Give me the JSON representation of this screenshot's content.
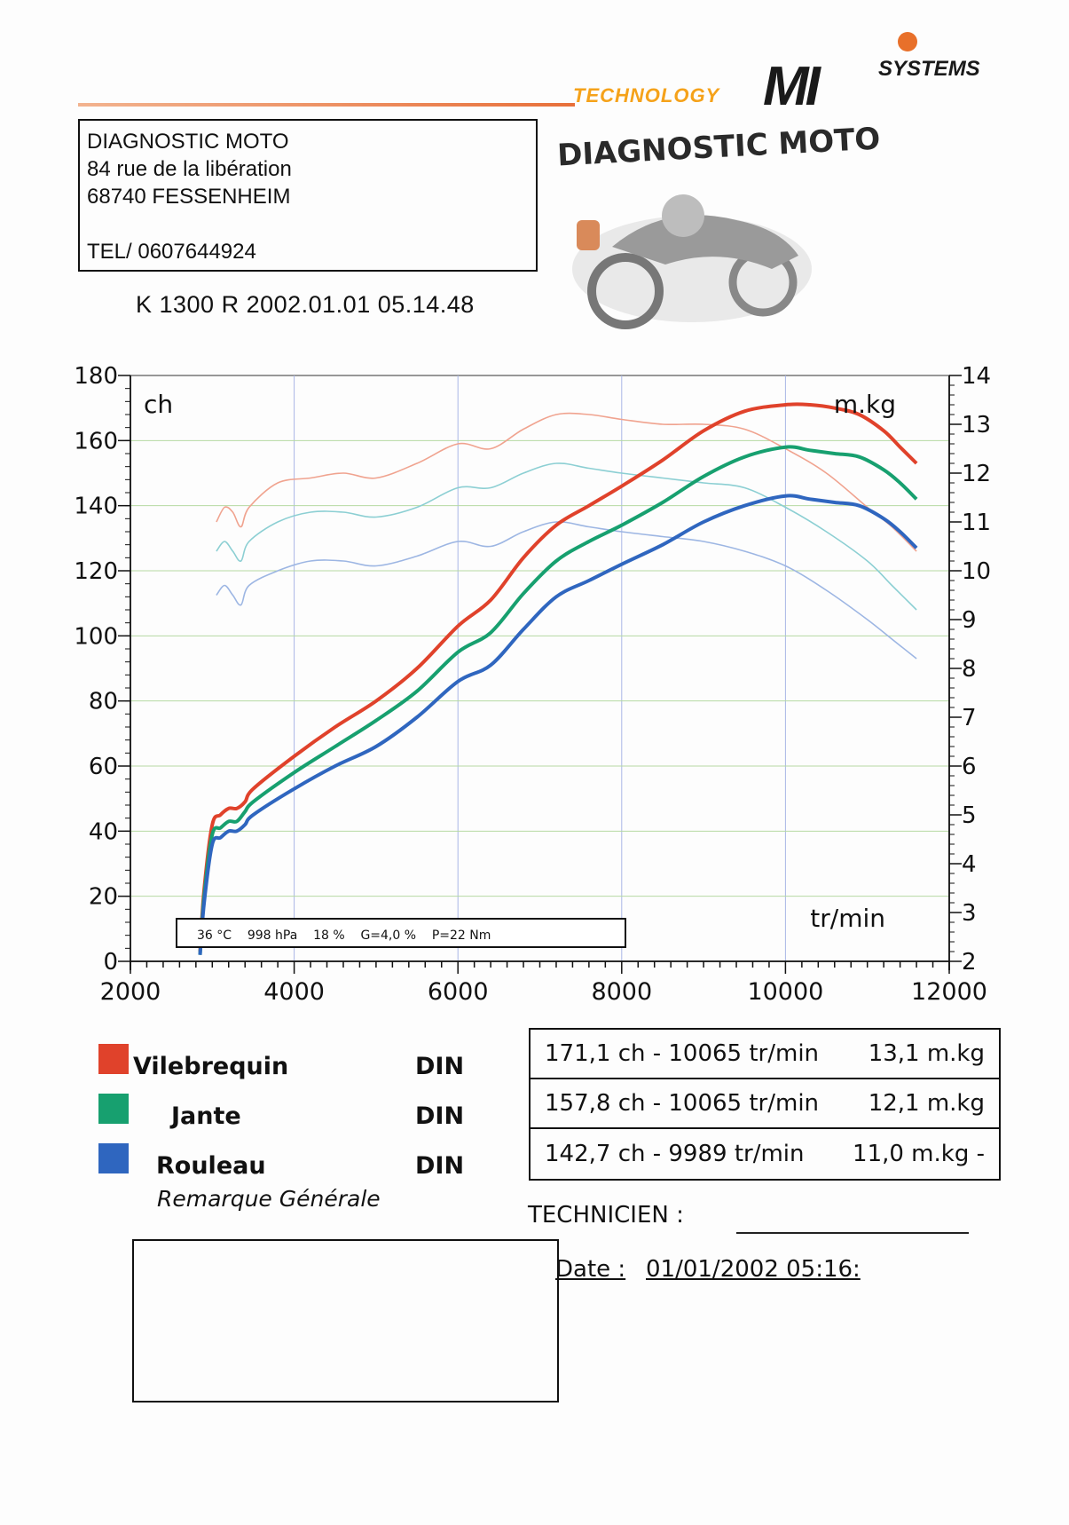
{
  "header": {
    "brand_tech": "TECHNOLOGY",
    "brand_mi": "MI",
    "brand_systems": "SYSTEMS",
    "diag_title": "DIAGNOSTIC MOTO"
  },
  "address": {
    "line1": "DIAGNOSTIC MOTO",
    "line2": "84 rue de la libération",
    "line3": "68740 FESSENHEIM",
    "line4": "TEL/ 0607644924"
  },
  "model_line": "K 1300 R    2002.01.01 05.14.48",
  "conditions": "36 °C    998 hPa    18 %    G=4,0 %    P=22 Nm",
  "legend": [
    {
      "label": "Vilebrequin",
      "mode": "DIN",
      "color": "#e0422b"
    },
    {
      "label": "Jante",
      "mode": "DIN",
      "color": "#17a06f"
    },
    {
      "label": "Rouleau",
      "mode": "DIN",
      "color": "#2f66bf"
    }
  ],
  "results": [
    {
      "power": "171,1 ch - 10065 tr/min",
      "torque": "13,1 m.kg"
    },
    {
      "power": "157,8 ch - 10065 tr/min",
      "torque": "12,1 m.kg"
    },
    {
      "power": "142,7 ch - 9989 tr/min",
      "torque": "11,0 m.kg -"
    }
  ],
  "remarque": "Remarque Générale",
  "technicien_label": "TECHNICIEN :",
  "date_label": "Date :",
  "date_value": "01/01/2002 05:16:",
  "chart_data": {
    "type": "line",
    "xlabel": "tr/min",
    "ylabel_left": "ch",
    "ylabel_right": "m.kg",
    "xlim": [
      2000,
      12000
    ],
    "ylim_left": [
      0,
      180
    ],
    "ylim_right": [
      2,
      14
    ],
    "x_ticks": [
      "2000",
      "4000",
      "6000",
      "8000",
      "10000",
      "12000"
    ],
    "y_ticks_left": [
      "0",
      "20",
      "40",
      "60",
      "80",
      "100",
      "120",
      "140",
      "160",
      "180"
    ],
    "y_ticks_right": [
      "2",
      "3",
      "4",
      "5",
      "6",
      "7",
      "8",
      "9",
      "10",
      "11",
      "12",
      "13",
      "14"
    ],
    "grid": true,
    "power_series": [
      {
        "name": "Vilebrequin",
        "color": "#e0422b",
        "x": [
          2850,
          2900,
          3000,
          3100,
          3200,
          3300,
          3400,
          3500,
          4000,
          4500,
          5000,
          5500,
          6000,
          6400,
          6800,
          7200,
          7600,
          8000,
          8500,
          9000,
          9500,
          10000,
          10300,
          10600,
          10900,
          11200,
          11400,
          11600
        ],
        "y": [
          3,
          22,
          42,
          45,
          47,
          47,
          49,
          53,
          63,
          72,
          80,
          90,
          103,
          111,
          124,
          134,
          140,
          146,
          154,
          163,
          169,
          171,
          171,
          170,
          168,
          163,
          158,
          153
        ]
      },
      {
        "name": "Jante",
        "color": "#17a06f",
        "x": [
          2850,
          2900,
          3000,
          3100,
          3200,
          3300,
          3400,
          3500,
          4000,
          4500,
          5000,
          5500,
          6000,
          6400,
          6800,
          7200,
          7600,
          8000,
          8500,
          9000,
          9500,
          10000,
          10300,
          10600,
          10900,
          11200,
          11400,
          11600
        ],
        "y": [
          2,
          20,
          39,
          41,
          43,
          43,
          46,
          49,
          58,
          66,
          74,
          83,
          95,
          101,
          113,
          123,
          129,
          134,
          141,
          149,
          155,
          158,
          157,
          156,
          155,
          151,
          147,
          142
        ]
      },
      {
        "name": "Rouleau",
        "color": "#2f66bf",
        "x": [
          2850,
          2900,
          3000,
          3100,
          3200,
          3300,
          3400,
          3500,
          4000,
          4500,
          5000,
          5500,
          6000,
          6400,
          6800,
          7200,
          7600,
          8000,
          8500,
          9000,
          9500,
          10000,
          10300,
          10600,
          10900,
          11200,
          11400,
          11600
        ],
        "y": [
          2,
          18,
          36,
          38,
          40,
          40,
          42,
          45,
          53,
          60,
          66,
          75,
          86,
          91,
          102,
          112,
          117,
          122,
          128,
          135,
          140,
          143,
          142,
          141,
          140,
          136,
          132,
          127
        ]
      }
    ],
    "torque_series": [
      {
        "name": "Vilebrequin",
        "color": "#f0a38f",
        "x": [
          3050,
          3150,
          3250,
          3350,
          3450,
          3800,
          4200,
          4600,
          5000,
          5500,
          6000,
          6400,
          6800,
          7200,
          7600,
          8000,
          8500,
          9000,
          9500,
          10000,
          10500,
          11000,
          11300,
          11600
        ],
        "y": [
          11.0,
          11.3,
          11.2,
          10.9,
          11.3,
          11.8,
          11.9,
          12.0,
          11.9,
          12.2,
          12.6,
          12.5,
          12.9,
          13.2,
          13.2,
          13.1,
          13.0,
          13.0,
          12.9,
          12.5,
          12.0,
          11.3,
          10.9,
          10.4
        ]
      },
      {
        "name": "Jante",
        "color": "#8ccfd3",
        "x": [
          3050,
          3150,
          3250,
          3350,
          3450,
          3800,
          4200,
          4600,
          5000,
          5500,
          6000,
          6400,
          6800,
          7200,
          7600,
          8000,
          8500,
          9000,
          9500,
          10000,
          10500,
          11000,
          11300,
          11600
        ],
        "y": [
          10.4,
          10.6,
          10.4,
          10.2,
          10.6,
          11.0,
          11.2,
          11.2,
          11.1,
          11.3,
          11.7,
          11.7,
          12.0,
          12.2,
          12.1,
          12.0,
          11.9,
          11.8,
          11.7,
          11.3,
          10.8,
          10.2,
          9.7,
          9.2
        ]
      },
      {
        "name": "Rouleau",
        "color": "#9db6e3",
        "x": [
          3050,
          3150,
          3250,
          3350,
          3450,
          3800,
          4200,
          4600,
          5000,
          5500,
          6000,
          6400,
          6800,
          7200,
          7600,
          8000,
          8500,
          9000,
          9500,
          10000,
          10500,
          11000,
          11300,
          11600
        ],
        "y": [
          9.5,
          9.7,
          9.5,
          9.3,
          9.7,
          10.0,
          10.2,
          10.2,
          10.1,
          10.3,
          10.6,
          10.5,
          10.8,
          11.0,
          10.9,
          10.8,
          10.7,
          10.6,
          10.4,
          10.1,
          9.6,
          9.0,
          8.6,
          8.2
        ]
      }
    ]
  }
}
